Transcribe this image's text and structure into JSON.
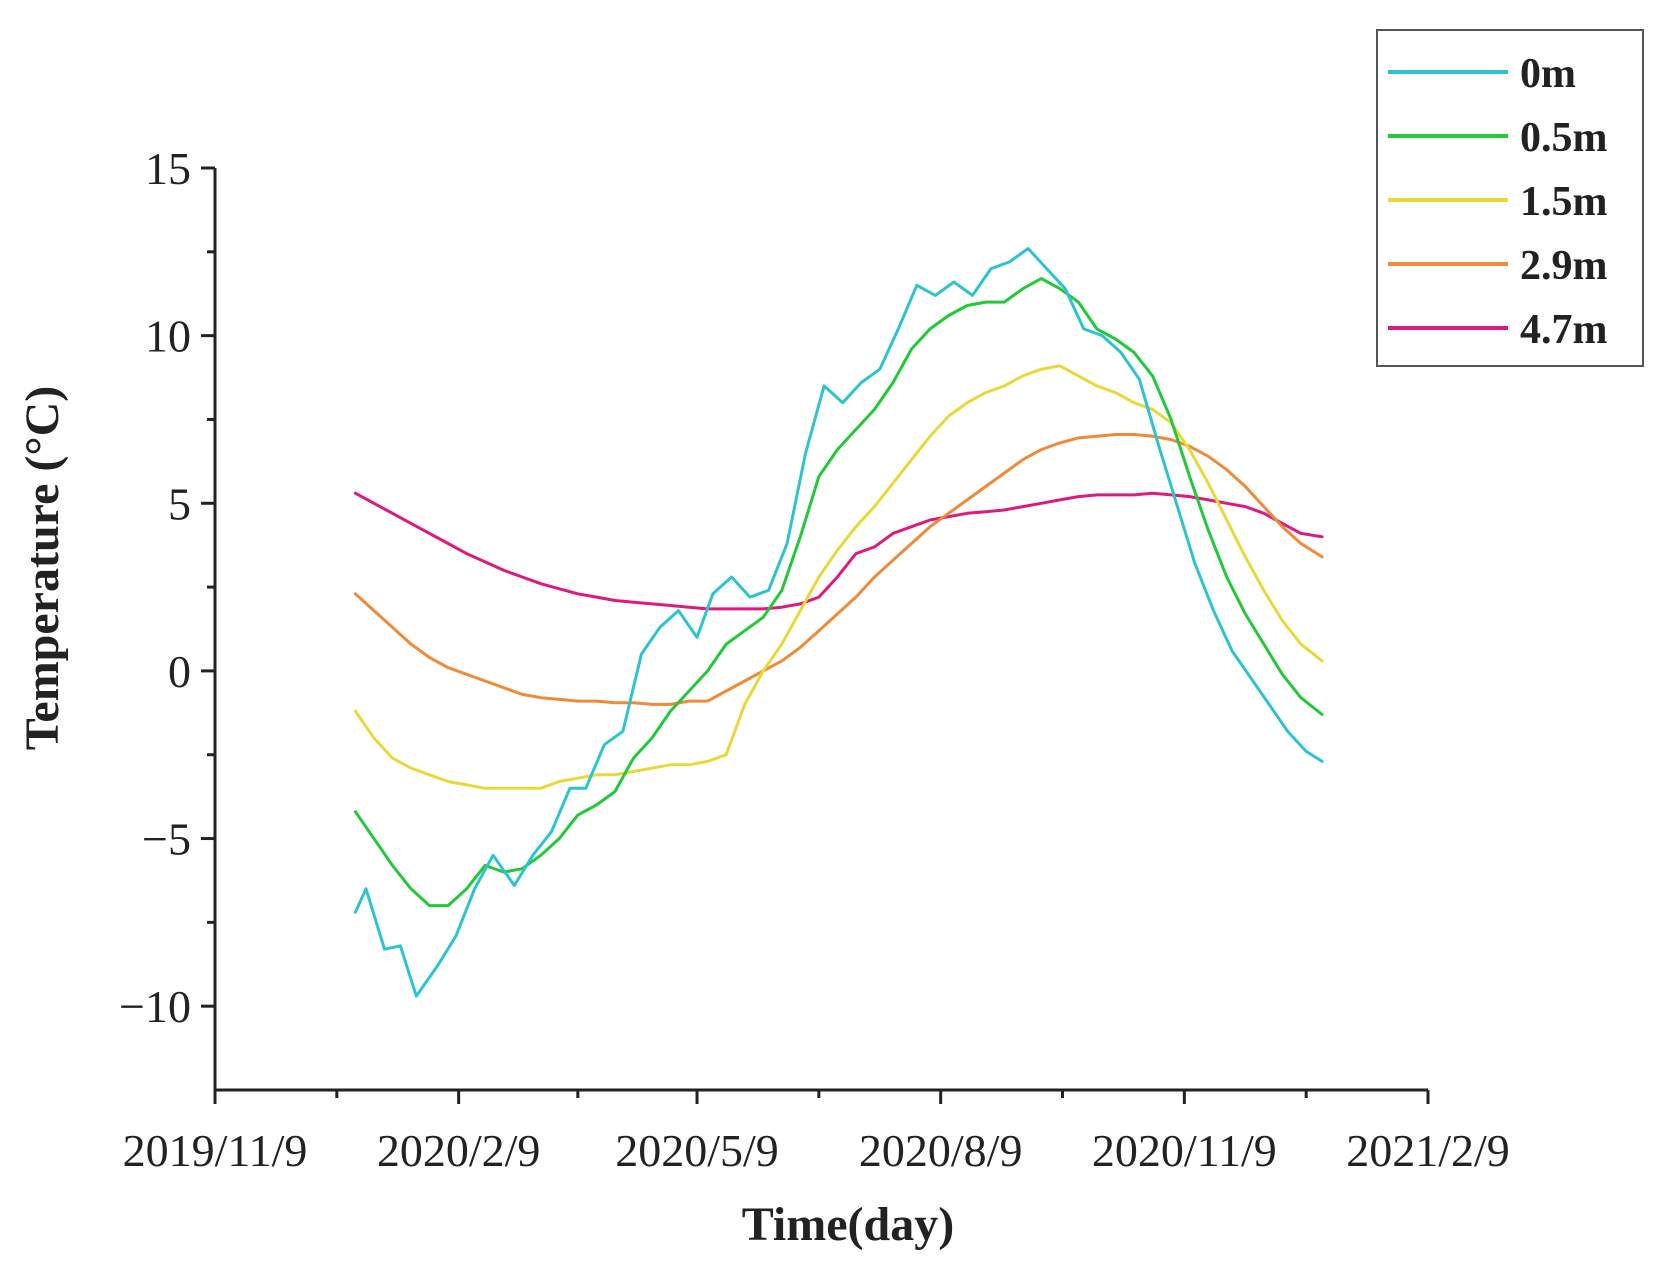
{
  "chart_data": {
    "type": "line",
    "title": "",
    "xlabel": "Time(day)",
    "ylabel": "Temperature (°C)",
    "x_type": "date",
    "xlim": [
      "2019-11-09",
      "2021-02-09"
    ],
    "ylim": [
      -12.5,
      15
    ],
    "x_ticks": [
      "2019-11-09",
      "2020-02-09",
      "2020-05-09",
      "2020-08-09",
      "2020-11-09",
      "2021-02-09"
    ],
    "x_tick_labels": [
      "2019/11/9",
      "2020/2/9",
      "2020/5/9",
      "2020/8/9",
      "2020/11/9",
      "2021/2/9"
    ],
    "y_ticks": [
      -10,
      -5,
      0,
      5,
      10,
      15
    ],
    "y_tick_labels": [
      "−10",
      "−5",
      "0",
      "5",
      "10",
      "15"
    ],
    "grid": false,
    "legend_position": "top-right",
    "series": [
      {
        "name": "0m",
        "color": "#2ec4cf",
        "points": [
          [
            "2020-01-01",
            -7.2
          ],
          [
            "2020-01-05",
            -6.5
          ],
          [
            "2020-01-12",
            -8.3
          ],
          [
            "2020-01-18",
            -8.2
          ],
          [
            "2020-01-24",
            -9.7
          ],
          [
            "2020-02-01",
            -8.8
          ],
          [
            "2020-02-08",
            -7.9
          ],
          [
            "2020-02-15",
            -6.5
          ],
          [
            "2020-02-22",
            -5.5
          ],
          [
            "2020-03-01",
            -6.4
          ],
          [
            "2020-03-08",
            -5.5
          ],
          [
            "2020-03-15",
            -4.8
          ],
          [
            "2020-03-22",
            -3.5
          ],
          [
            "2020-03-28",
            -3.5
          ],
          [
            "2020-04-04",
            -2.2
          ],
          [
            "2020-04-11",
            -1.8
          ],
          [
            "2020-04-18",
            0.5
          ],
          [
            "2020-04-25",
            1.3
          ],
          [
            "2020-05-02",
            1.8
          ],
          [
            "2020-05-09",
            1.0
          ],
          [
            "2020-05-15",
            2.3
          ],
          [
            "2020-05-22",
            2.8
          ],
          [
            "2020-05-29",
            2.2
          ],
          [
            "2020-06-05",
            2.4
          ],
          [
            "2020-06-12",
            3.8
          ],
          [
            "2020-06-19",
            6.5
          ],
          [
            "2020-06-26",
            8.5
          ],
          [
            "2020-07-03",
            8.0
          ],
          [
            "2020-07-10",
            8.6
          ],
          [
            "2020-07-17",
            9.0
          ],
          [
            "2020-07-24",
            10.2
          ],
          [
            "2020-07-31",
            11.5
          ],
          [
            "2020-08-07",
            11.2
          ],
          [
            "2020-08-14",
            11.6
          ],
          [
            "2020-08-21",
            11.2
          ],
          [
            "2020-08-28",
            12.0
          ],
          [
            "2020-09-04",
            12.2
          ],
          [
            "2020-09-11",
            12.6
          ],
          [
            "2020-09-18",
            12.0
          ],
          [
            "2020-09-25",
            11.4
          ],
          [
            "2020-10-02",
            10.2
          ],
          [
            "2020-10-09",
            10.0
          ],
          [
            "2020-10-16",
            9.5
          ],
          [
            "2020-10-23",
            8.7
          ],
          [
            "2020-10-30",
            6.8
          ],
          [
            "2020-11-06",
            5.0
          ],
          [
            "2020-11-13",
            3.2
          ],
          [
            "2020-11-20",
            1.8
          ],
          [
            "2020-11-27",
            0.6
          ],
          [
            "2020-12-04",
            -0.2
          ],
          [
            "2020-12-11",
            -1.0
          ],
          [
            "2020-12-18",
            -1.8
          ],
          [
            "2020-12-25",
            -2.4
          ],
          [
            "2020-12-31",
            -2.7
          ]
        ]
      },
      {
        "name": "0.5m",
        "color": "#22c93a",
        "points": [
          [
            "2020-01-01",
            -4.2
          ],
          [
            "2020-01-08",
            -5.0
          ],
          [
            "2020-01-15",
            -5.8
          ],
          [
            "2020-01-22",
            -6.5
          ],
          [
            "2020-01-29",
            -7.0
          ],
          [
            "2020-02-05",
            -7.0
          ],
          [
            "2020-02-12",
            -6.5
          ],
          [
            "2020-02-19",
            -5.8
          ],
          [
            "2020-02-26",
            -6.0
          ],
          [
            "2020-03-04",
            -5.9
          ],
          [
            "2020-03-11",
            -5.5
          ],
          [
            "2020-03-18",
            -5.0
          ],
          [
            "2020-03-25",
            -4.3
          ],
          [
            "2020-04-01",
            -4.0
          ],
          [
            "2020-04-08",
            -3.6
          ],
          [
            "2020-04-15",
            -2.6
          ],
          [
            "2020-04-22",
            -2.0
          ],
          [
            "2020-04-29",
            -1.2
          ],
          [
            "2020-05-06",
            -0.6
          ],
          [
            "2020-05-13",
            0.0
          ],
          [
            "2020-05-20",
            0.8
          ],
          [
            "2020-05-27",
            1.2
          ],
          [
            "2020-06-03",
            1.6
          ],
          [
            "2020-06-10",
            2.4
          ],
          [
            "2020-06-17",
            4.0
          ],
          [
            "2020-06-24",
            5.8
          ],
          [
            "2020-07-01",
            6.6
          ],
          [
            "2020-07-08",
            7.2
          ],
          [
            "2020-07-15",
            7.8
          ],
          [
            "2020-07-22",
            8.6
          ],
          [
            "2020-07-29",
            9.6
          ],
          [
            "2020-08-05",
            10.2
          ],
          [
            "2020-08-12",
            10.6
          ],
          [
            "2020-08-19",
            10.9
          ],
          [
            "2020-08-26",
            11.0
          ],
          [
            "2020-09-02",
            11.0
          ],
          [
            "2020-09-09",
            11.4
          ],
          [
            "2020-09-16",
            11.7
          ],
          [
            "2020-09-23",
            11.4
          ],
          [
            "2020-09-30",
            11.0
          ],
          [
            "2020-10-07",
            10.2
          ],
          [
            "2020-10-14",
            9.9
          ],
          [
            "2020-10-21",
            9.5
          ],
          [
            "2020-10-28",
            8.8
          ],
          [
            "2020-11-04",
            7.5
          ],
          [
            "2020-11-11",
            5.8
          ],
          [
            "2020-11-18",
            4.2
          ],
          [
            "2020-11-25",
            2.8
          ],
          [
            "2020-12-02",
            1.7
          ],
          [
            "2020-12-09",
            0.8
          ],
          [
            "2020-12-16",
            -0.1
          ],
          [
            "2020-12-23",
            -0.8
          ],
          [
            "2020-12-31",
            -1.3
          ]
        ]
      },
      {
        "name": "1.5m",
        "color": "#e8d83a",
        "points": [
          [
            "2020-01-01",
            -1.2
          ],
          [
            "2020-01-08",
            -2.0
          ],
          [
            "2020-01-15",
            -2.6
          ],
          [
            "2020-01-22",
            -2.9
          ],
          [
            "2020-01-29",
            -3.1
          ],
          [
            "2020-02-05",
            -3.3
          ],
          [
            "2020-02-12",
            -3.4
          ],
          [
            "2020-02-19",
            -3.5
          ],
          [
            "2020-02-26",
            -3.5
          ],
          [
            "2020-03-04",
            -3.5
          ],
          [
            "2020-03-11",
            -3.5
          ],
          [
            "2020-03-18",
            -3.3
          ],
          [
            "2020-03-25",
            -3.2
          ],
          [
            "2020-04-01",
            -3.1
          ],
          [
            "2020-04-08",
            -3.1
          ],
          [
            "2020-04-15",
            -3.0
          ],
          [
            "2020-04-22",
            -2.9
          ],
          [
            "2020-04-29",
            -2.8
          ],
          [
            "2020-05-06",
            -2.8
          ],
          [
            "2020-05-13",
            -2.7
          ],
          [
            "2020-05-20",
            -2.5
          ],
          [
            "2020-05-27",
            -1.0
          ],
          [
            "2020-06-03",
            0.0
          ],
          [
            "2020-06-10",
            0.8
          ],
          [
            "2020-06-17",
            1.8
          ],
          [
            "2020-06-24",
            2.8
          ],
          [
            "2020-07-01",
            3.6
          ],
          [
            "2020-07-08",
            4.3
          ],
          [
            "2020-07-15",
            4.9
          ],
          [
            "2020-07-22",
            5.6
          ],
          [
            "2020-07-29",
            6.3
          ],
          [
            "2020-08-05",
            7.0
          ],
          [
            "2020-08-12",
            7.6
          ],
          [
            "2020-08-19",
            8.0
          ],
          [
            "2020-08-26",
            8.3
          ],
          [
            "2020-09-02",
            8.5
          ],
          [
            "2020-09-09",
            8.8
          ],
          [
            "2020-09-16",
            9.0
          ],
          [
            "2020-09-23",
            9.1
          ],
          [
            "2020-09-30",
            8.8
          ],
          [
            "2020-10-07",
            8.5
          ],
          [
            "2020-10-14",
            8.3
          ],
          [
            "2020-10-21",
            8.0
          ],
          [
            "2020-10-28",
            7.8
          ],
          [
            "2020-11-04",
            7.4
          ],
          [
            "2020-11-11",
            6.6
          ],
          [
            "2020-11-18",
            5.6
          ],
          [
            "2020-11-25",
            4.5
          ],
          [
            "2020-12-02",
            3.4
          ],
          [
            "2020-12-09",
            2.4
          ],
          [
            "2020-12-16",
            1.5
          ],
          [
            "2020-12-23",
            0.8
          ],
          [
            "2020-12-31",
            0.3
          ]
        ]
      },
      {
        "name": "2.9m",
        "color": "#ee8a3a",
        "points": [
          [
            "2020-01-01",
            2.3
          ],
          [
            "2020-01-08",
            1.8
          ],
          [
            "2020-01-15",
            1.3
          ],
          [
            "2020-01-22",
            0.8
          ],
          [
            "2020-01-29",
            0.4
          ],
          [
            "2020-02-05",
            0.1
          ],
          [
            "2020-02-12",
            -0.1
          ],
          [
            "2020-02-19",
            -0.3
          ],
          [
            "2020-02-26",
            -0.5
          ],
          [
            "2020-03-04",
            -0.7
          ],
          [
            "2020-03-11",
            -0.8
          ],
          [
            "2020-03-18",
            -0.85
          ],
          [
            "2020-03-25",
            -0.9
          ],
          [
            "2020-04-01",
            -0.9
          ],
          [
            "2020-04-08",
            -0.95
          ],
          [
            "2020-04-15",
            -0.95
          ],
          [
            "2020-04-22",
            -1.0
          ],
          [
            "2020-04-29",
            -1.0
          ],
          [
            "2020-05-06",
            -0.9
          ],
          [
            "2020-05-13",
            -0.9
          ],
          [
            "2020-05-20",
            -0.6
          ],
          [
            "2020-05-27",
            -0.3
          ],
          [
            "2020-06-03",
            0.0
          ],
          [
            "2020-06-10",
            0.3
          ],
          [
            "2020-06-17",
            0.7
          ],
          [
            "2020-06-24",
            1.2
          ],
          [
            "2020-07-01",
            1.7
          ],
          [
            "2020-07-08",
            2.2
          ],
          [
            "2020-07-15",
            2.8
          ],
          [
            "2020-07-22",
            3.3
          ],
          [
            "2020-07-29",
            3.8
          ],
          [
            "2020-08-05",
            4.3
          ],
          [
            "2020-08-12",
            4.7
          ],
          [
            "2020-08-19",
            5.1
          ],
          [
            "2020-08-26",
            5.5
          ],
          [
            "2020-09-02",
            5.9
          ],
          [
            "2020-09-09",
            6.3
          ],
          [
            "2020-09-16",
            6.6
          ],
          [
            "2020-09-23",
            6.8
          ],
          [
            "2020-09-30",
            6.95
          ],
          [
            "2020-10-07",
            7.0
          ],
          [
            "2020-10-14",
            7.05
          ],
          [
            "2020-10-21",
            7.05
          ],
          [
            "2020-10-28",
            7.0
          ],
          [
            "2020-11-04",
            6.9
          ],
          [
            "2020-11-11",
            6.7
          ],
          [
            "2020-11-18",
            6.4
          ],
          [
            "2020-11-25",
            6.0
          ],
          [
            "2020-12-02",
            5.5
          ],
          [
            "2020-12-09",
            4.9
          ],
          [
            "2020-12-16",
            4.3
          ],
          [
            "2020-12-23",
            3.8
          ],
          [
            "2020-12-31",
            3.4
          ]
        ]
      },
      {
        "name": "4.7m",
        "color": "#e0197f",
        "points": [
          [
            "2020-01-01",
            5.3
          ],
          [
            "2020-01-08",
            5.0
          ],
          [
            "2020-01-15",
            4.7
          ],
          [
            "2020-01-22",
            4.4
          ],
          [
            "2020-01-29",
            4.1
          ],
          [
            "2020-02-05",
            3.8
          ],
          [
            "2020-02-12",
            3.5
          ],
          [
            "2020-02-19",
            3.25
          ],
          [
            "2020-02-26",
            3.0
          ],
          [
            "2020-03-04",
            2.8
          ],
          [
            "2020-03-11",
            2.6
          ],
          [
            "2020-03-18",
            2.45
          ],
          [
            "2020-03-25",
            2.3
          ],
          [
            "2020-04-01",
            2.2
          ],
          [
            "2020-04-08",
            2.1
          ],
          [
            "2020-04-15",
            2.05
          ],
          [
            "2020-04-22",
            2.0
          ],
          [
            "2020-04-29",
            1.95
          ],
          [
            "2020-05-06",
            1.9
          ],
          [
            "2020-05-13",
            1.85
          ],
          [
            "2020-05-20",
            1.85
          ],
          [
            "2020-05-27",
            1.85
          ],
          [
            "2020-06-03",
            1.85
          ],
          [
            "2020-06-10",
            1.9
          ],
          [
            "2020-06-17",
            2.0
          ],
          [
            "2020-06-24",
            2.2
          ],
          [
            "2020-07-01",
            2.8
          ],
          [
            "2020-07-08",
            3.5
          ],
          [
            "2020-07-15",
            3.7
          ],
          [
            "2020-07-22",
            4.1
          ],
          [
            "2020-07-29",
            4.3
          ],
          [
            "2020-08-05",
            4.5
          ],
          [
            "2020-08-12",
            4.6
          ],
          [
            "2020-08-19",
            4.7
          ],
          [
            "2020-08-26",
            4.75
          ],
          [
            "2020-09-02",
            4.8
          ],
          [
            "2020-09-09",
            4.9
          ],
          [
            "2020-09-16",
            5.0
          ],
          [
            "2020-09-23",
            5.1
          ],
          [
            "2020-09-30",
            5.2
          ],
          [
            "2020-10-07",
            5.25
          ],
          [
            "2020-10-14",
            5.25
          ],
          [
            "2020-10-21",
            5.25
          ],
          [
            "2020-10-28",
            5.3
          ],
          [
            "2020-11-04",
            5.25
          ],
          [
            "2020-11-11",
            5.2
          ],
          [
            "2020-11-18",
            5.1
          ],
          [
            "2020-11-25",
            5.0
          ],
          [
            "2020-12-02",
            4.9
          ],
          [
            "2020-12-09",
            4.7
          ],
          [
            "2020-12-16",
            4.4
          ],
          [
            "2020-12-23",
            4.1
          ],
          [
            "2020-12-31",
            4.0
          ]
        ]
      }
    ]
  }
}
